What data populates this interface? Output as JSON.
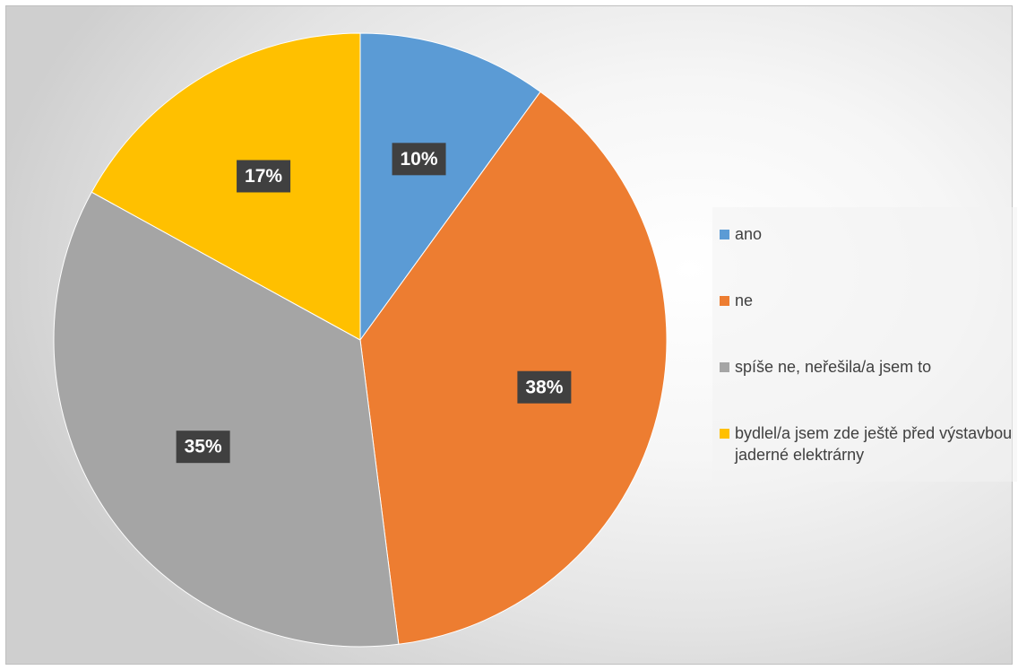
{
  "chart_data": {
    "type": "pie",
    "title": "",
    "start_angle_deg": 0,
    "direction": "clockwise",
    "legend_position": "right",
    "slices": [
      {
        "label": "ano",
        "value": 10,
        "data_label": "10%",
        "color": "#5B9BD5"
      },
      {
        "label": "ne",
        "value": 38,
        "data_label": "38%",
        "color": "#ED7D31"
      },
      {
        "label": "spíše ne, neřešila/a jsem to",
        "value": 35,
        "data_label": "35%",
        "color": "#A5A5A5"
      },
      {
        "label": "bydlel/a jsem zde ještě před výstavbou jaderné elektrárny",
        "value": 17,
        "data_label": "17%",
        "color": "#FFC000"
      }
    ]
  }
}
